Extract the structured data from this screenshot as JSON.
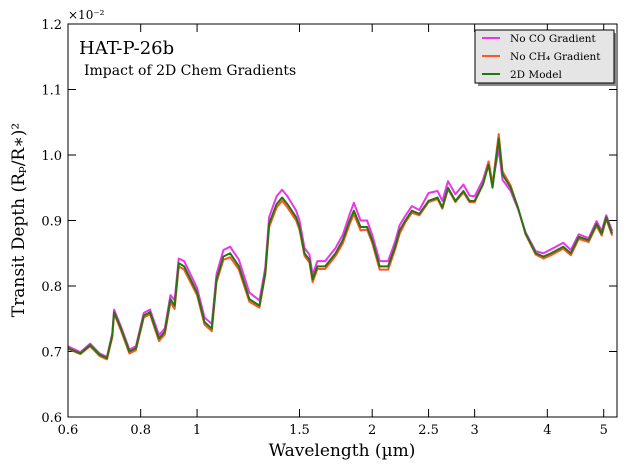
{
  "chart_data": {
    "type": "line",
    "title": "HAT-P-26b",
    "subtitle": "Impact of 2D Chem Gradients",
    "x_label": "Wavelength (µm)",
    "y_label": "Transit Depth (Rₚ/R∗)²",
    "y_offset_label": "×10⁻²",
    "xscale": "log",
    "xlim": [
      0.6,
      5.27
    ],
    "ylim": [
      0.6,
      1.2
    ],
    "xticks": [
      0.6,
      0.8,
      1,
      1.5,
      2,
      2.5,
      3,
      4,
      5
    ],
    "yticks": [
      0.6,
      0.7,
      0.8,
      0.9,
      {
        "value": 1,
        "label": "1.0"
      },
      1.1,
      1.2
    ],
    "legend": "upper right",
    "x": [
      0.6,
      0.63,
      0.655,
      0.68,
      0.7,
      0.715,
      0.72,
      0.74,
      0.765,
      0.785,
      0.81,
      0.83,
      0.86,
      0.88,
      0.9,
      0.915,
      0.93,
      0.95,
      1.0,
      1.03,
      1.06,
      1.08,
      1.11,
      1.14,
      1.18,
      1.23,
      1.28,
      1.31,
      1.33,
      1.37,
      1.4,
      1.43,
      1.48,
      1.5,
      1.53,
      1.56,
      1.58,
      1.61,
      1.66,
      1.73,
      1.78,
      1.83,
      1.86,
      1.91,
      1.96,
      2.0,
      2.06,
      2.13,
      2.19,
      2.23,
      2.28,
      2.34,
      2.41,
      2.5,
      2.59,
      2.64,
      2.7,
      2.78,
      2.87,
      2.94,
      3.0,
      3.1,
      3.17,
      3.22,
      3.3,
      3.35,
      3.46,
      3.56,
      3.67,
      3.82,
      3.94,
      4.06,
      4.26,
      4.39,
      4.53,
      4.71,
      4.86,
      4.96,
      5.05,
      5.17
    ],
    "series": [
      {
        "name": "No CO Gradient",
        "color": "#ee33ee",
        "values": [
          0.708,
          0.699,
          0.712,
          0.697,
          0.692,
          0.728,
          0.764,
          0.738,
          0.703,
          0.708,
          0.759,
          0.764,
          0.725,
          0.735,
          0.786,
          0.778,
          0.842,
          0.838,
          0.797,
          0.752,
          0.742,
          0.818,
          0.855,
          0.86,
          0.84,
          0.79,
          0.778,
          0.828,
          0.905,
          0.937,
          0.947,
          0.937,
          0.915,
          0.9,
          0.858,
          0.848,
          0.817,
          0.838,
          0.838,
          0.858,
          0.878,
          0.91,
          0.927,
          0.9,
          0.9,
          0.878,
          0.838,
          0.838,
          0.868,
          0.893,
          0.907,
          0.922,
          0.916,
          0.942,
          0.945,
          0.93,
          0.96,
          0.94,
          0.955,
          0.938,
          0.937,
          0.962,
          0.99,
          0.956,
          1.01,
          0.962,
          0.945,
          0.918,
          0.882,
          0.853,
          0.85,
          0.856,
          0.866,
          0.855,
          0.879,
          0.873,
          0.899,
          0.884,
          0.908,
          0.884
        ]
      },
      {
        "name": "No CH₄ Gradient",
        "color": "#ff5522",
        "values": [
          0.704,
          0.696,
          0.708,
          0.693,
          0.688,
          0.722,
          0.758,
          0.732,
          0.697,
          0.702,
          0.752,
          0.757,
          0.716,
          0.726,
          0.775,
          0.765,
          0.83,
          0.825,
          0.786,
          0.741,
          0.731,
          0.806,
          0.84,
          0.844,
          0.825,
          0.776,
          0.767,
          0.817,
          0.89,
          0.92,
          0.93,
          0.92,
          0.9,
          0.886,
          0.846,
          0.836,
          0.806,
          0.826,
          0.826,
          0.846,
          0.865,
          0.895,
          0.91,
          0.885,
          0.886,
          0.866,
          0.825,
          0.825,
          0.856,
          0.88,
          0.897,
          0.912,
          0.908,
          0.928,
          0.933,
          0.918,
          0.948,
          0.928,
          0.943,
          0.928,
          0.928,
          0.955,
          0.99,
          0.955,
          1.032,
          0.975,
          0.953,
          0.92,
          0.879,
          0.848,
          0.842,
          0.847,
          0.857,
          0.847,
          0.872,
          0.867,
          0.892,
          0.877,
          0.902,
          0.877
        ]
      },
      {
        "name": "2D Model",
        "color": "#227711",
        "values": [
          0.705,
          0.697,
          0.71,
          0.695,
          0.69,
          0.725,
          0.76,
          0.735,
          0.7,
          0.705,
          0.755,
          0.76,
          0.72,
          0.73,
          0.78,
          0.77,
          0.835,
          0.83,
          0.79,
          0.745,
          0.735,
          0.81,
          0.845,
          0.85,
          0.83,
          0.78,
          0.77,
          0.82,
          0.895,
          0.925,
          0.935,
          0.925,
          0.905,
          0.89,
          0.85,
          0.84,
          0.81,
          0.83,
          0.83,
          0.85,
          0.87,
          0.9,
          0.915,
          0.89,
          0.89,
          0.87,
          0.83,
          0.83,
          0.86,
          0.885,
          0.9,
          0.915,
          0.91,
          0.93,
          0.935,
          0.92,
          0.95,
          0.93,
          0.945,
          0.93,
          0.93,
          0.955,
          0.985,
          0.95,
          1.025,
          0.97,
          0.95,
          0.92,
          0.88,
          0.85,
          0.845,
          0.85,
          0.86,
          0.85,
          0.875,
          0.87,
          0.895,
          0.88,
          0.905,
          0.88
        ]
      }
    ]
  }
}
